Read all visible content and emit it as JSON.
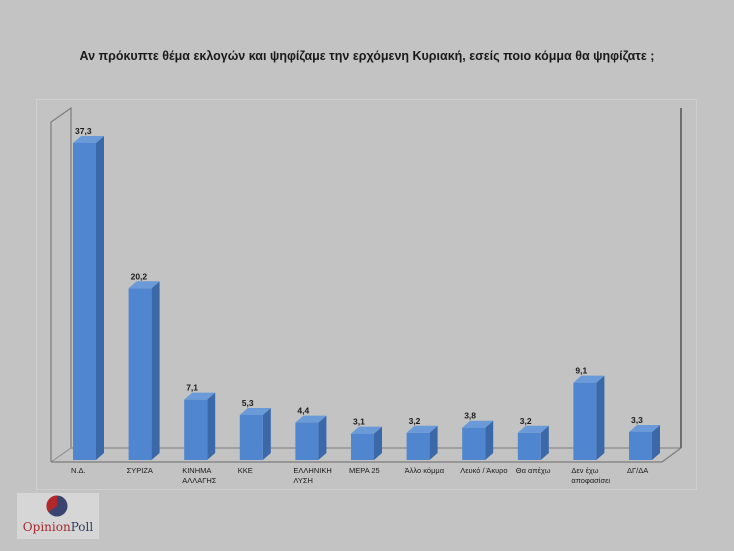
{
  "title": "Αν πρόκυπτε θέμα εκλογών και ψηφίζαμε την ερχόμενη Κυριακή, εσείς ποιο κόμμα θα ψηφίζατε ;",
  "logo": {
    "part1": "Opinion",
    "part2": "Poll",
    "colors": {
      "red": "#b3262a",
      "navy": "#3a4470"
    }
  },
  "colors": {
    "bar_front": "#4f86cf",
    "bar_side": "#3a68a8",
    "bar_top": "#6a9ad8",
    "background": "#c3c3c3",
    "axis": "#808080"
  },
  "chart_data": {
    "type": "bar",
    "style": "3d-column",
    "title": "Αν πρόκυπτε θέμα εκλογών και ψηφίζαμε την ερχόμενη Κυριακή, εσείς ποιο κόμμα θα ψηφίζατε ;",
    "categories": [
      [
        "Ν.Δ."
      ],
      [
        "ΣΥΡΙΖΑ"
      ],
      [
        "ΚΙΝΗΜΑ",
        "ΑΛΛΑΓΗΣ"
      ],
      [
        "ΚΚΕ"
      ],
      [
        "ΕΛΛΗΝΙΚΗ",
        "ΛΥΣΗ"
      ],
      [
        "ΜΕΡΑ 25"
      ],
      [
        "Άλλο κόμμα"
      ],
      [
        "Λευκό / Άκυρο"
      ],
      [
        "Θα απέχω"
      ],
      [
        "Δεν έχω",
        "αποφασίσει"
      ],
      [
        "ΔΓ/ΔΑ"
      ]
    ],
    "values": [
      37.3,
      20.2,
      7.1,
      5.3,
      4.4,
      3.1,
      3.2,
      3.8,
      3.2,
      9.1,
      3.3
    ],
    "value_labels": [
      "37,3",
      "20,2",
      "7,1",
      "5,3",
      "4,4",
      "3,1",
      "3,2",
      "3,8",
      "3,2",
      "9,1",
      "3,3"
    ],
    "xlabel": "",
    "ylabel": "",
    "ylim": [
      0,
      40
    ],
    "grid": false,
    "legend": "none"
  }
}
